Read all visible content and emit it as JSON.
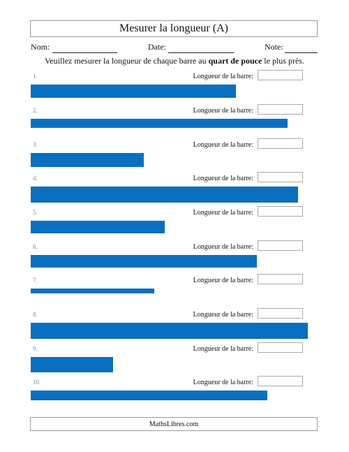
{
  "header": {
    "title": "Mesurer la longueur (A)",
    "name_label": "Nom:",
    "date_label": "Date:",
    "note_label": "Note:"
  },
  "instructions": {
    "before": "Veuillez mesurer la longueur de chaque barre au ",
    "bold": "quart de pouce",
    "after": " le plus près."
  },
  "answer_label": "Longueur de la barre:",
  "problems": [
    {
      "number": "1.",
      "bar_fraction": 0.741
    },
    {
      "number": "2.",
      "bar_fraction": 0.927
    },
    {
      "number": "3.",
      "bar_fraction": 0.408
    },
    {
      "number": "4.",
      "bar_fraction": 0.965
    },
    {
      "number": "5.",
      "bar_fraction": 0.483
    },
    {
      "number": "6.",
      "bar_fraction": 0.816
    },
    {
      "number": "7.",
      "bar_fraction": 0.446
    },
    {
      "number": "8.",
      "bar_fraction": 1.0
    },
    {
      "number": "9.",
      "bar_fraction": 0.297
    },
    {
      "number": "10.",
      "bar_fraction": 0.853
    }
  ],
  "colors": {
    "bar": "#0b6fbf"
  },
  "footer": {
    "site": "MathsLibres.com"
  }
}
